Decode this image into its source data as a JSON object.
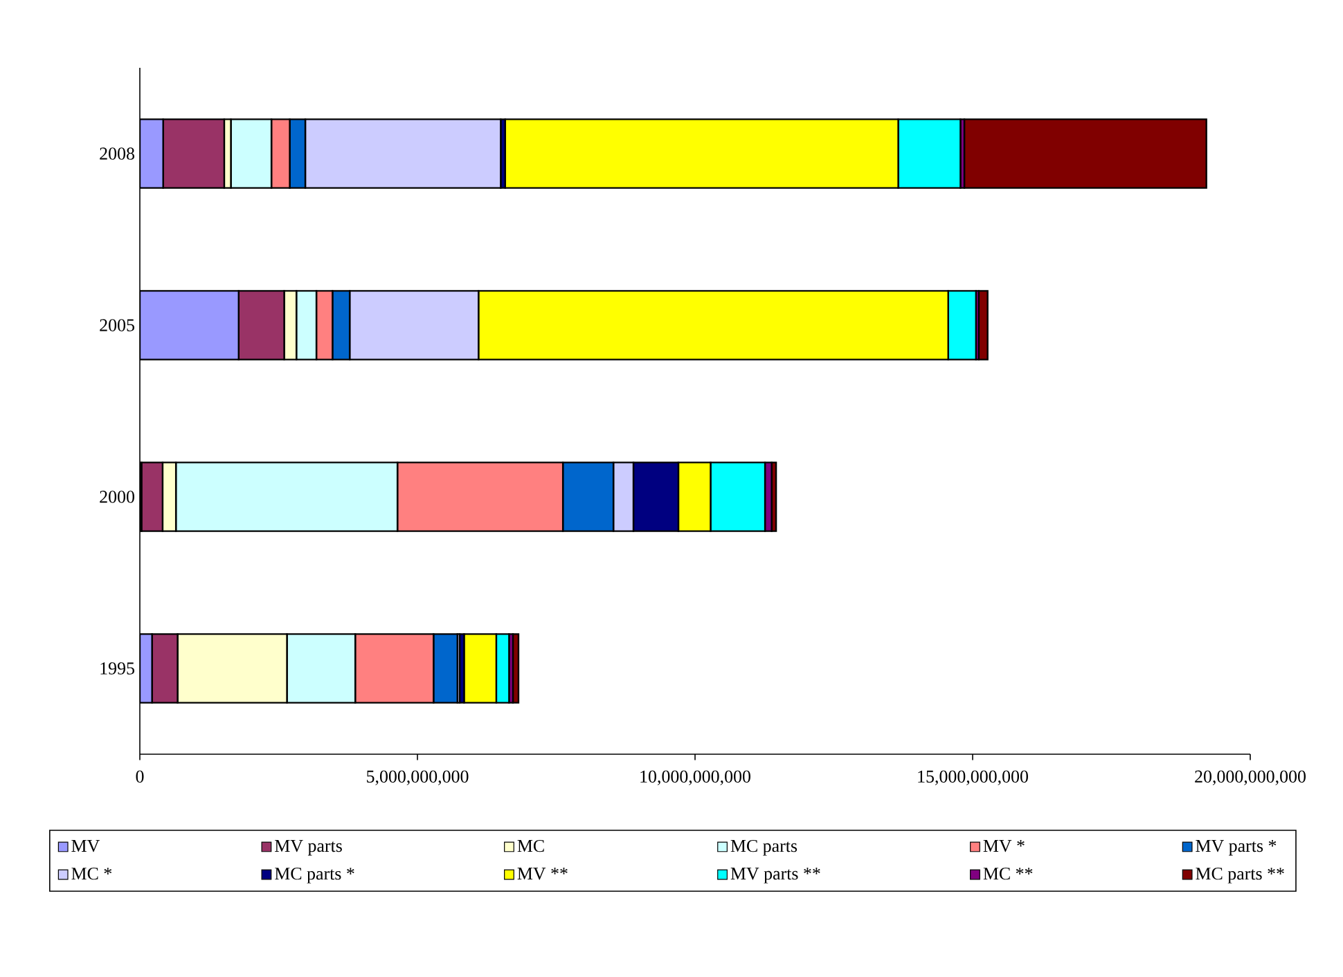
{
  "chart_data": {
    "type": "bar",
    "orientation": "horizontal",
    "stacked": true,
    "legend": "bottom",
    "categories": [
      "2008",
      "2005",
      "2000",
      "1995"
    ],
    "xlim": [
      0,
      20000000000
    ],
    "xticks": [
      0,
      {
        "value": 5000000000,
        "label": "5,000,000,000"
      },
      {
        "value": 10000000000,
        "label": "10,000,000,000"
      },
      {
        "value": 15000000000,
        "label": "15,000,000,000"
      },
      {
        "value": 20000000000,
        "label": "20,000,000,000"
      }
    ],
    "series": [
      {
        "name": "MV",
        "color": "#9999ff",
        "values": [
          420000000,
          1780000000,
          30000000,
          220000000
        ]
      },
      {
        "name": "MV parts",
        "color": "#993366",
        "values": [
          1100000000,
          820000000,
          380000000,
          460000000
        ]
      },
      {
        "name": "MC",
        "color": "#ffffcc",
        "values": [
          120000000,
          220000000,
          240000000,
          1970000000
        ]
      },
      {
        "name": "MC parts",
        "color": "#ccffff",
        "values": [
          730000000,
          360000000,
          3990000000,
          1230000000
        ]
      },
      {
        "name": "MV *",
        "color": "#ff8080",
        "values": [
          330000000,
          290000000,
          2980000000,
          1410000000
        ]
      },
      {
        "name": "MV parts *",
        "color": "#0066cc",
        "values": [
          280000000,
          310000000,
          910000000,
          430000000
        ]
      },
      {
        "name": "MC *",
        "color": "#ccccff",
        "values": [
          3520000000,
          2320000000,
          360000000,
          40000000
        ]
      },
      {
        "name": "MC parts *",
        "color": "#000080",
        "values": [
          80000000,
          0,
          810000000,
          80000000
        ]
      },
      {
        "name": "MV **",
        "color": "#ffff00",
        "values": [
          7080000000,
          8460000000,
          580000000,
          580000000
        ]
      },
      {
        "name": "MV parts **",
        "color": "#00ffff",
        "values": [
          1120000000,
          500000000,
          980000000,
          230000000
        ]
      },
      {
        "name": "MC **",
        "color": "#800080",
        "values": [
          70000000,
          50000000,
          120000000,
          70000000
        ]
      },
      {
        "name": "MC parts **",
        "color": "#800000",
        "values": [
          4360000000,
          160000000,
          80000000,
          100000000
        ]
      }
    ]
  }
}
